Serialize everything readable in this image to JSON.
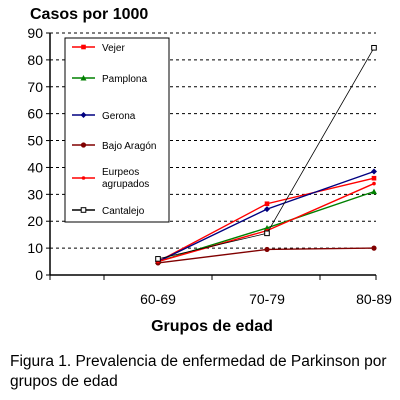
{
  "chart_data": {
    "type": "line",
    "ylabel": "Casos por 1000",
    "xlabel": "Grupos de edad",
    "categories": [
      "60-69",
      "70-79",
      "80-89"
    ],
    "ylim": [
      0,
      90
    ],
    "yticks": [
      0,
      10,
      20,
      30,
      40,
      50,
      60,
      70,
      80,
      90
    ],
    "grid": "horizontal-dashed",
    "legend_position": "top-left",
    "series": [
      {
        "name": "Vejer",
        "color": "#ff0000",
        "marker": "square",
        "values": [
          5,
          26.5,
          36
        ]
      },
      {
        "name": "Pamplona",
        "color": "#008000",
        "marker": "triangle",
        "values": [
          5,
          17.5,
          31
        ]
      },
      {
        "name": "Gerona",
        "color": "#000080",
        "marker": "diamond",
        "values": [
          5,
          24.5,
          38.5
        ]
      },
      {
        "name": "Bajo Aragón",
        "color": "#800000",
        "marker": "circle",
        "values": [
          4.5,
          9.5,
          10
        ]
      },
      {
        "name": "Eurpeos agrupados",
        "color": "#ff0000",
        "marker": "dot",
        "values": [
          5,
          16.5,
          34
        ]
      },
      {
        "name": "Cantalejo",
        "color": "#000000",
        "marker": "square-open",
        "values": [
          6,
          15.5,
          84.5
        ]
      }
    ]
  },
  "caption": "Figura 1. Prevalencia de enfermedad de Parkinson por grupos de edad"
}
